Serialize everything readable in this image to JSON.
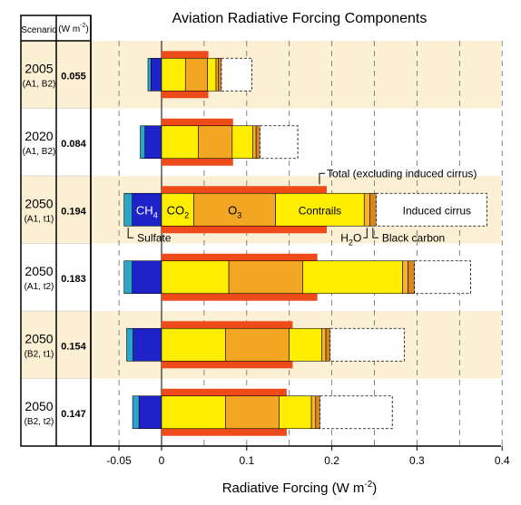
{
  "chart_data": {
    "type": "bar",
    "title": "Aviation Radiative Forcing Components",
    "xlabel": "Radiative Forcing (W m",
    "xlabel_sup": "-2",
    "xlim": [
      -0.07,
      0.4
    ],
    "x_ticks": [
      {
        "value": -0.05,
        "label": "-0.05"
      },
      {
        "value": 0,
        "label": "0"
      },
      {
        "value": 0.1,
        "label": "0.1"
      },
      {
        "value": 0.2,
        "label": "0.2"
      },
      {
        "value": 0.3,
        "label": "0.3"
      },
      {
        "value": 0.4,
        "label": "0.4"
      }
    ],
    "table_header": {
      "col1": "Scenario",
      "col2_main": "(W m",
      "col2_sup": "-2",
      "col2_end": ")"
    },
    "colors": {
      "sulfate": "#2aa6cc",
      "ch4": "#1e22c8",
      "co2": "#ffee00",
      "o3": "#f2a622",
      "contrails": "#ffee00",
      "h2o": "#f5b52a",
      "black_carbon": "#d9861c",
      "total_bar": "#ee4a1a",
      "induced_cirrus": "#ffffff",
      "band": "#fbf0d4"
    },
    "series": [
      {
        "year": "2005",
        "scenario": "(A1, B2)",
        "total_value": "0.055",
        "sulfate": -0.0035,
        "ch4": -0.0125,
        "co2": 0.028,
        "o3": 0.026,
        "contrails": 0.01,
        "h2o": 0.0028,
        "black_carbon": 0.0035,
        "total": 0.055,
        "induced_cirrus_to": 0.106,
        "banded": true
      },
      {
        "year": "2020",
        "scenario": "(A1, B2)",
        "total_value": "0.084",
        "sulfate": -0.0055,
        "ch4": -0.0195,
        "co2": 0.043,
        "o3": 0.04,
        "contrails": 0.024,
        "h2o": 0.004,
        "black_carbon": 0.0045,
        "total": 0.084,
        "induced_cirrus_to": 0.16,
        "banded": false
      },
      {
        "year": "2050",
        "scenario": "(A1, t1)",
        "total_value": "0.194",
        "sulfate": -0.0095,
        "ch4": -0.0345,
        "co2": 0.038,
        "o3": 0.096,
        "contrails": 0.104,
        "h2o": 0.0065,
        "black_carbon": 0.0075,
        "total": 0.194,
        "induced_cirrus_to": 0.382,
        "banded": true
      },
      {
        "year": "2050",
        "scenario": "(A1, t2)",
        "total_value": "0.183",
        "sulfate": -0.0095,
        "ch4": -0.0345,
        "co2": 0.079,
        "o3": 0.087,
        "contrails": 0.117,
        "h2o": 0.0065,
        "black_carbon": 0.0075,
        "total": 0.183,
        "induced_cirrus_to": 0.363,
        "banded": false
      },
      {
        "year": "2050",
        "scenario": "(B2, t1)",
        "total_value": "0.154",
        "sulfate": -0.0075,
        "ch4": -0.0335,
        "co2": 0.075,
        "o3": 0.075,
        "contrails": 0.038,
        "h2o": 0.005,
        "black_carbon": 0.005,
        "total": 0.154,
        "induced_cirrus_to": 0.285,
        "banded": true
      },
      {
        "year": "2050",
        "scenario": "(B2, t2)",
        "total_value": "0.147",
        "sulfate": -0.0075,
        "ch4": -0.0265,
        "co2": 0.075,
        "o3": 0.063,
        "contrails": 0.038,
        "h2o": 0.005,
        "black_carbon": 0.005,
        "total": 0.147,
        "induced_cirrus_to": 0.271,
        "banded": false
      }
    ],
    "labels": {
      "sulfate": "Sulfate",
      "ch4_main": "CH",
      "ch4_sub": "4",
      "co2_main": "CO",
      "co2_sub": "2",
      "o3_main": "O",
      "o3_sub": "3",
      "contrails": "Contrails",
      "induced_cirrus": "Induced cirrus",
      "total": "Total (excluding induced cirrus)",
      "h2o_main": "H",
      "h2o_sub": "2",
      "h2o_end": "O",
      "black_carbon": "Black carbon"
    }
  }
}
